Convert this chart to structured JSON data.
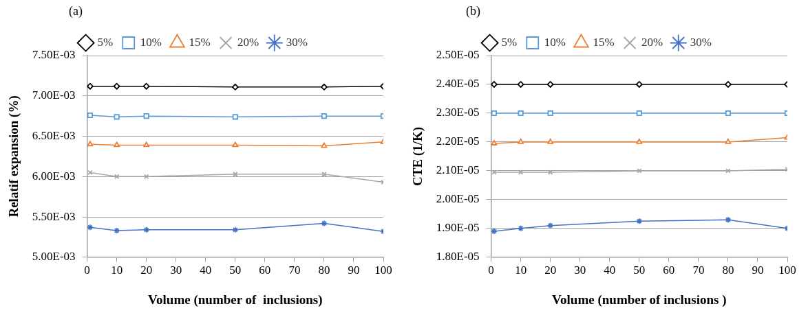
{
  "chart_data": [
    {
      "type": "line",
      "title": "(a)",
      "xlabel": "Volume (number of  inclusions)",
      "ylabel": "Relatif expansion (%)",
      "x": [
        1,
        10,
        20,
        50,
        80,
        100
      ],
      "xlim": [
        0,
        100
      ],
      "xticks": [
        0,
        10,
        20,
        30,
        40,
        50,
        60,
        70,
        80,
        90,
        100
      ],
      "ylim": [
        0.005,
        0.0075
      ],
      "yticks": [
        {
          "value": 0.005,
          "label": "5.00E-03"
        },
        {
          "value": 0.0055,
          "label": "5.50E-03"
        },
        {
          "value": 0.006,
          "label": "6.00E-03"
        },
        {
          "value": 0.0065,
          "label": "6.50E-03"
        },
        {
          "value": 0.007,
          "label": "7.00E-03"
        },
        {
          "value": 0.0075,
          "label": "7.50E-03"
        }
      ],
      "grid": "y",
      "legend": "top",
      "series": [
        {
          "name": "5%",
          "color": "#000000",
          "marker": "diamond",
          "values": [
            0.00712,
            0.00712,
            0.00712,
            0.00711,
            0.00711,
            0.00712
          ]
        },
        {
          "name": "10%",
          "color": "#5b9bd5",
          "marker": "square",
          "values": [
            0.00676,
            0.00674,
            0.00675,
            0.00674,
            0.00675,
            0.00675
          ]
        },
        {
          "name": "15%",
          "color": "#ed7d31",
          "marker": "triangle",
          "values": [
            0.0064,
            0.00639,
            0.00639,
            0.00639,
            0.00638,
            0.00643
          ]
        },
        {
          "name": "20%",
          "color": "#a5a5a5",
          "marker": "cross",
          "values": [
            0.00605,
            0.006,
            0.006,
            0.00603,
            0.00603,
            0.00593
          ]
        },
        {
          "name": "30%",
          "color": "#4472c4",
          "marker": "cross",
          "values": [
            0.00537,
            0.00533,
            0.00534,
            0.00534,
            0.00542,
            0.00532
          ]
        }
      ]
    },
    {
      "type": "line",
      "title": "(b)",
      "xlabel": "Volume (number of inclusions )",
      "ylabel": "CTE (1/K)",
      "x": [
        1,
        10,
        20,
        50,
        80,
        100
      ],
      "xlim": [
        0,
        100
      ],
      "xticks": [
        0,
        10,
        20,
        30,
        40,
        50,
        60,
        70,
        80,
        90,
        100
      ],
      "ylim": [
        1.8e-05,
        2.5e-05
      ],
      "yticks": [
        {
          "value": 1.8e-05,
          "label": "1.80E-05"
        },
        {
          "value": 1.9e-05,
          "label": "1.90E-05"
        },
        {
          "value": 2e-05,
          "label": "2.00E-05"
        },
        {
          "value": 2.1e-05,
          "label": "2.10E-05"
        },
        {
          "value": 2.2e-05,
          "label": "2.20E-05"
        },
        {
          "value": 2.3e-05,
          "label": "2.30E-05"
        },
        {
          "value": 2.4e-05,
          "label": "2.40E-05"
        },
        {
          "value": 2.5e-05,
          "label": "2.50E-05"
        }
      ],
      "grid": "y",
      "legend": "top",
      "series": [
        {
          "name": "5%",
          "color": "#000000",
          "marker": "diamond",
          "values": [
            2.4e-05,
            2.4e-05,
            2.4e-05,
            2.4e-05,
            2.4e-05,
            2.4e-05
          ]
        },
        {
          "name": "10%",
          "color": "#5b9bd5",
          "marker": "square",
          "values": [
            2.3e-05,
            2.3e-05,
            2.3e-05,
            2.3e-05,
            2.3e-05,
            2.3e-05
          ]
        },
        {
          "name": "15%",
          "color": "#ed7d31",
          "marker": "triangle",
          "values": [
            2.195e-05,
            2.2e-05,
            2.2e-05,
            2.2e-05,
            2.2e-05,
            2.215e-05
          ]
        },
        {
          "name": "20%",
          "color": "#a5a5a5",
          "marker": "cross",
          "values": [
            2.095e-05,
            2.095e-05,
            2.095e-05,
            2.1e-05,
            2.1e-05,
            2.105e-05
          ]
        },
        {
          "name": "30%",
          "color": "#4472c4",
          "marker": "cross",
          "values": [
            1.89e-05,
            1.9e-05,
            1.91e-05,
            1.925e-05,
            1.93e-05,
            1.9e-05
          ]
        }
      ]
    }
  ]
}
